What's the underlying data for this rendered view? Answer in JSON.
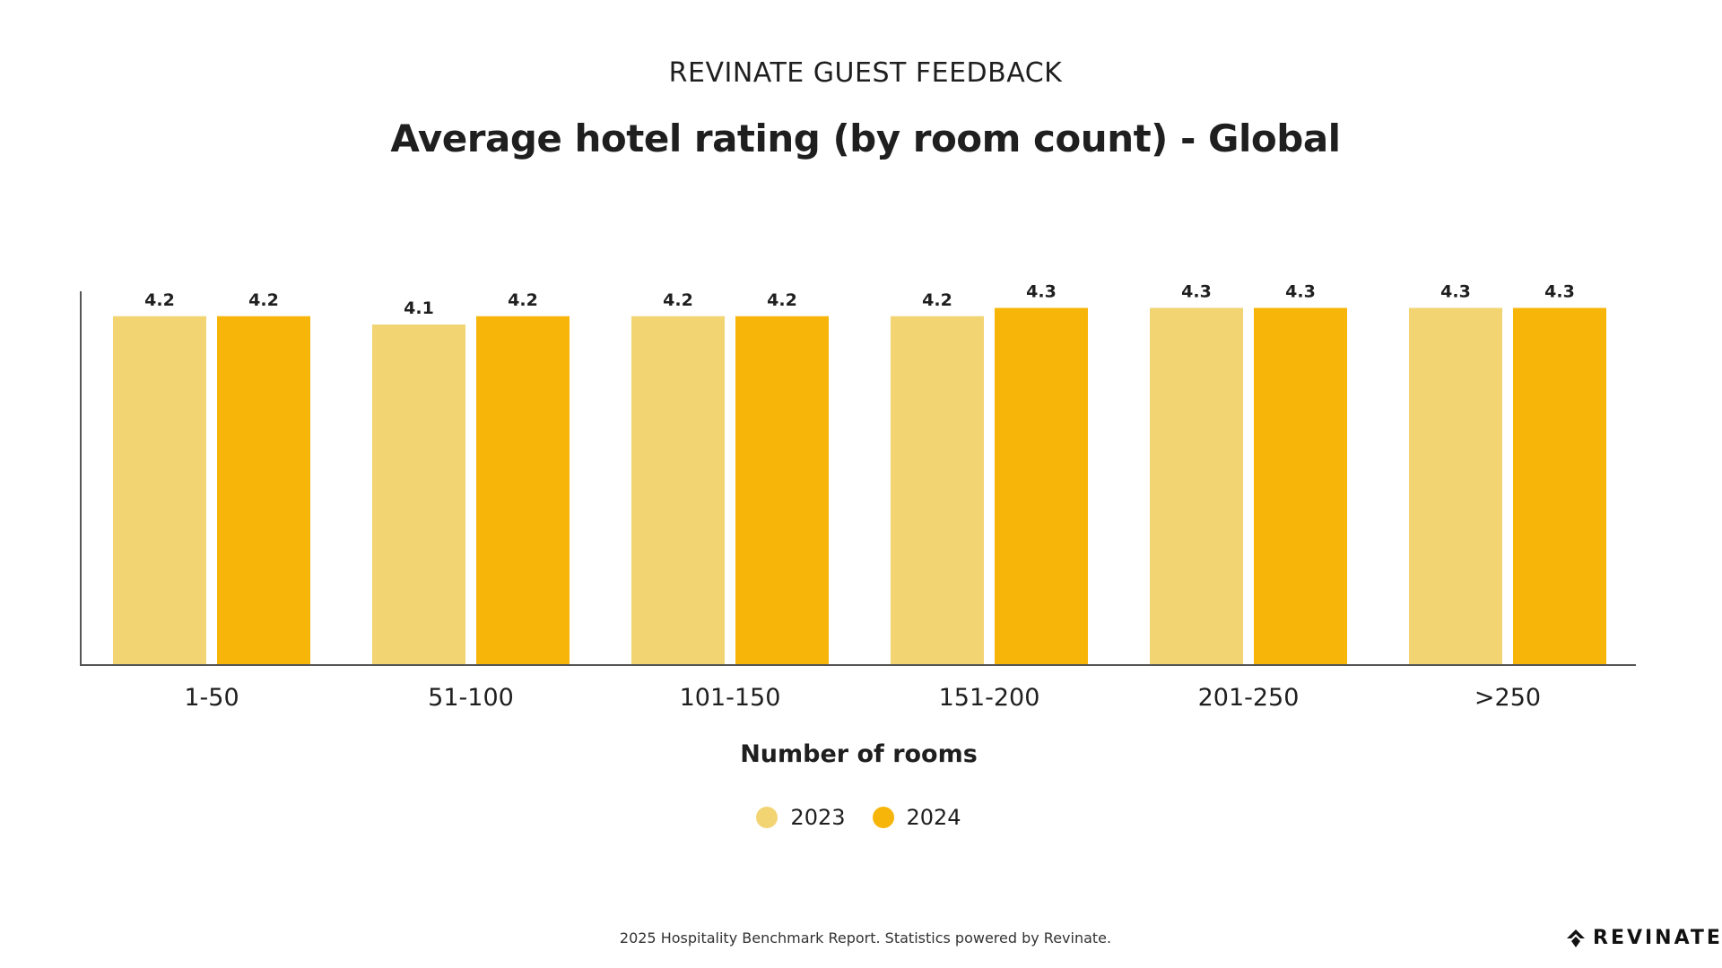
{
  "header": {
    "eyebrow": "REVINATE GUEST FEEDBACK",
    "title": "Average hotel rating (by room count) - Global"
  },
  "chart_data": {
    "type": "bar",
    "title": "Average hotel rating (by room count) - Global",
    "xlabel": "Number of rooms",
    "ylabel": "",
    "categories": [
      "1-50",
      "51-100",
      "101-150",
      "151-200",
      "201-250",
      ">250"
    ],
    "series": [
      {
        "name": "2023",
        "values": [
          4.2,
          4.1,
          4.2,
          4.2,
          4.3,
          4.3
        ],
        "color": "#F2D473"
      },
      {
        "name": "2024",
        "values": [
          4.2,
          4.2,
          4.2,
          4.3,
          4.3,
          4.3
        ],
        "color": "#F7B50A"
      }
    ],
    "ylim": [
      0,
      4.5
    ],
    "grid": false,
    "legend_position": "bottom-center",
    "data_labels": true
  },
  "footer": {
    "note": "2025 Hospitality Benchmark Report. Statistics powered by Revinate.",
    "brand": "REVINATE",
    "brand_icon": "revinate-logo-icon"
  },
  "colors": {
    "axis": "#555555",
    "text": "#1f1f1f"
  }
}
